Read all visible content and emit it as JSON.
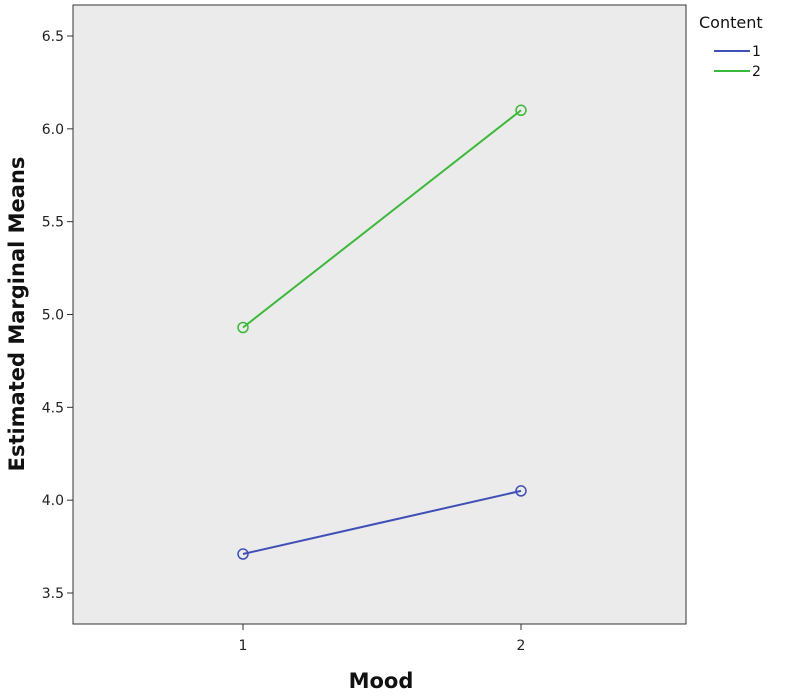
{
  "chart_data": {
    "type": "line",
    "title": "",
    "xlabel": "Mood",
    "ylabel": "Estimated Marginal Means",
    "x": [
      "1",
      "2"
    ],
    "ylim": [
      3.4,
      6.65
    ],
    "yticks": [
      "3.5",
      "4.0",
      "4.5",
      "5.0",
      "5.5",
      "6.0",
      "6.5"
    ],
    "grid": false,
    "plot_background": "#ebebeb",
    "legend": {
      "title": "Content",
      "placement": "right-top"
    },
    "series": [
      {
        "name": "1",
        "color": "#3f4fb7",
        "values": [
          3.71,
          4.05
        ],
        "marker": "open-circle"
      },
      {
        "name": "2",
        "color": "#3cb83a",
        "values": [
          4.93,
          6.1
        ],
        "marker": "open-circle"
      }
    ]
  }
}
